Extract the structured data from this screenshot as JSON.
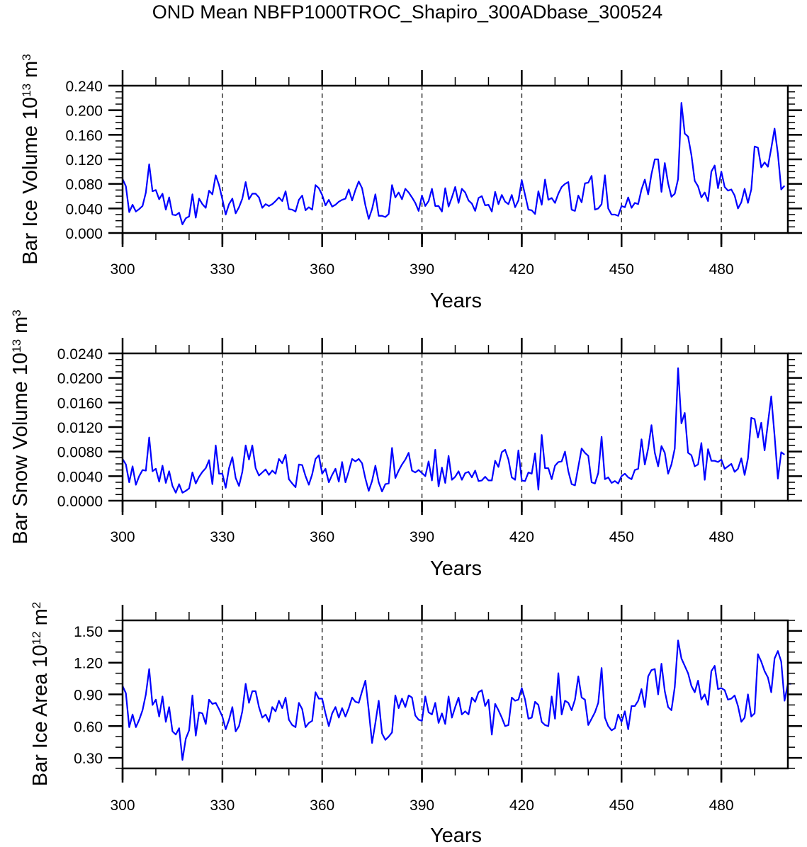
{
  "title": "OND Mean NBFP1000TROC_Shapiro_300ADbase_300524",
  "line_color": "#0000ff",
  "chart_data": [
    {
      "type": "line",
      "title": "OND Mean NBFP1000TROC_Shapiro_300ADbase_300524",
      "xlabel": "Years",
      "ylabel": "Bar Ice Volume 10^13 m^3",
      "ylabel_parts": {
        "main": "Bar Ice Volume 10",
        "exp": "13",
        "unit": " m",
        "unit_exp": "3"
      },
      "xlim": [
        300,
        499
      ],
      "ylim": [
        0.0,
        0.24
      ],
      "x_ticks": [
        300,
        330,
        360,
        390,
        420,
        450,
        480
      ],
      "x_tick_labels": [
        "300",
        "330",
        "360",
        "390",
        "420",
        "450",
        "480"
      ],
      "y_ticks": [
        0.0,
        0.04,
        0.08,
        0.12,
        0.16,
        0.2,
        0.24
      ],
      "y_tick_labels": [
        "0.000",
        "0.040",
        "0.080",
        "0.120",
        "0.160",
        "0.200",
        "0.240"
      ],
      "grid": "dashed vertical lines at 330, 360, 390, 420, 450, 480",
      "x_start": 300,
      "values": [
        0.088,
        0.076,
        0.034,
        0.046,
        0.035,
        0.039,
        0.044,
        0.066,
        0.112,
        0.068,
        0.07,
        0.055,
        0.064,
        0.038,
        0.058,
        0.03,
        0.029,
        0.033,
        0.014,
        0.024,
        0.027,
        0.063,
        0.025,
        0.056,
        0.047,
        0.041,
        0.069,
        0.063,
        0.094,
        0.078,
        0.055,
        0.03,
        0.047,
        0.056,
        0.032,
        0.042,
        0.056,
        0.083,
        0.055,
        0.064,
        0.064,
        0.058,
        0.041,
        0.047,
        0.044,
        0.047,
        0.052,
        0.058,
        0.052,
        0.068,
        0.039,
        0.038,
        0.035,
        0.054,
        0.061,
        0.037,
        0.042,
        0.038,
        0.078,
        0.073,
        0.062,
        0.045,
        0.054,
        0.043,
        0.046,
        0.051,
        0.054,
        0.056,
        0.071,
        0.053,
        0.07,
        0.084,
        0.073,
        0.045,
        0.023,
        0.039,
        0.063,
        0.028,
        0.028,
        0.026,
        0.031,
        0.078,
        0.058,
        0.066,
        0.055,
        0.072,
        0.066,
        0.058,
        0.049,
        0.036,
        0.061,
        0.044,
        0.052,
        0.072,
        0.044,
        0.044,
        0.035,
        0.073,
        0.043,
        0.058,
        0.075,
        0.049,
        0.072,
        0.066,
        0.053,
        0.048,
        0.036,
        0.057,
        0.06,
        0.045,
        0.046,
        0.035,
        0.067,
        0.047,
        0.062,
        0.051,
        0.047,
        0.062,
        0.042,
        0.053,
        0.086,
        0.062,
        0.038,
        0.037,
        0.031,
        0.068,
        0.046,
        0.087,
        0.054,
        0.057,
        0.049,
        0.064,
        0.075,
        0.08,
        0.083,
        0.038,
        0.036,
        0.061,
        0.05,
        0.081,
        0.082,
        0.093,
        0.038,
        0.04,
        0.047,
        0.094,
        0.04,
        0.03,
        0.03,
        0.028,
        0.044,
        0.042,
        0.058,
        0.041,
        0.049,
        0.047,
        0.071,
        0.087,
        0.063,
        0.096,
        0.12,
        0.12,
        0.067,
        0.114,
        0.081,
        0.059,
        0.064,
        0.088,
        0.212,
        0.162,
        0.157,
        0.127,
        0.085,
        0.076,
        0.058,
        0.066,
        0.052,
        0.1,
        0.11,
        0.073,
        0.1,
        0.075,
        0.069,
        0.071,
        0.061,
        0.04,
        0.05,
        0.072,
        0.049,
        0.071,
        0.141,
        0.139,
        0.107,
        0.115,
        0.108,
        0.138,
        0.17,
        0.129,
        0.071,
        0.077
      ]
    },
    {
      "type": "line",
      "xlabel": "Years",
      "ylabel": "Bar Snow Volume 10^13 m^3",
      "ylabel_parts": {
        "main": "Bar Snow Volume 10",
        "exp": "13",
        "unit": " m",
        "unit_exp": "3"
      },
      "xlim": [
        300,
        499
      ],
      "ylim": [
        0.0,
        0.024
      ],
      "x_ticks": [
        300,
        330,
        360,
        390,
        420,
        450,
        480
      ],
      "x_tick_labels": [
        "300",
        "330",
        "360",
        "390",
        "420",
        "450",
        "480"
      ],
      "y_ticks": [
        0.0,
        0.004,
        0.008,
        0.012,
        0.016,
        0.02,
        0.024
      ],
      "y_tick_labels": [
        "0.0000",
        "0.0040",
        "0.0080",
        "0.0120",
        "0.0160",
        "0.0200",
        "0.0240"
      ],
      "grid": "dashed vertical lines at 330, 360, 390, 420, 450, 480",
      "x_start": 300,
      "values": [
        0.0068,
        0.0059,
        0.003,
        0.0056,
        0.0026,
        0.004,
        0.005,
        0.0049,
        0.0103,
        0.0048,
        0.0052,
        0.0031,
        0.0057,
        0.0029,
        0.0048,
        0.0024,
        0.0013,
        0.0027,
        0.0013,
        0.0016,
        0.002,
        0.0046,
        0.0028,
        0.0039,
        0.0047,
        0.0053,
        0.0066,
        0.0027,
        0.009,
        0.0044,
        0.0044,
        0.0021,
        0.0053,
        0.0071,
        0.0037,
        0.0024,
        0.0047,
        0.009,
        0.0067,
        0.009,
        0.0053,
        0.0041,
        0.0046,
        0.0051,
        0.0042,
        0.0049,
        0.0044,
        0.0068,
        0.0061,
        0.0075,
        0.0035,
        0.0028,
        0.0022,
        0.0059,
        0.0058,
        0.004,
        0.0026,
        0.0043,
        0.0068,
        0.0074,
        0.0044,
        0.0052,
        0.003,
        0.0042,
        0.0052,
        0.0031,
        0.0063,
        0.003,
        0.0048,
        0.0068,
        0.0064,
        0.0068,
        0.0061,
        0.0036,
        0.0016,
        0.0032,
        0.0057,
        0.003,
        0.0015,
        0.0027,
        0.0028,
        0.0086,
        0.0037,
        0.0049,
        0.0059,
        0.0067,
        0.0078,
        0.0049,
        0.0046,
        0.005,
        0.0045,
        0.004,
        0.0064,
        0.0033,
        0.0083,
        0.0023,
        0.0054,
        0.0029,
        0.0073,
        0.0034,
        0.0039,
        0.0048,
        0.0034,
        0.0045,
        0.0047,
        0.0038,
        0.0049,
        0.0032,
        0.0033,
        0.0039,
        0.0033,
        0.0033,
        0.0065,
        0.0055,
        0.0079,
        0.0083,
        0.0067,
        0.0038,
        0.0034,
        0.0082,
        0.0033,
        0.0032,
        0.0046,
        0.0044,
        0.0077,
        0.0018,
        0.0107,
        0.0053,
        0.0053,
        0.0035,
        0.0057,
        0.0063,
        0.0064,
        0.008,
        0.0048,
        0.0027,
        0.0025,
        0.0055,
        0.0085,
        0.0078,
        0.0073,
        0.003,
        0.0028,
        0.0045,
        0.0104,
        0.0035,
        0.0038,
        0.0029,
        0.0032,
        0.0028,
        0.004,
        0.0044,
        0.0038,
        0.0035,
        0.005,
        0.0052,
        0.01,
        0.0059,
        0.0085,
        0.0123,
        0.0078,
        0.0056,
        0.0089,
        0.0078,
        0.0044,
        0.0059,
        0.0085,
        0.0216,
        0.0126,
        0.0143,
        0.0078,
        0.0074,
        0.0056,
        0.0059,
        0.0094,
        0.0034,
        0.0084,
        0.0065,
        0.0065,
        0.0063,
        0.0067,
        0.0052,
        0.0056,
        0.006,
        0.0047,
        0.0052,
        0.0069,
        0.0042,
        0.0069,
        0.0135,
        0.0133,
        0.0103,
        0.0127,
        0.0082,
        0.0126,
        0.017,
        0.0106,
        0.0036,
        0.0079,
        0.0075
      ]
    },
    {
      "type": "line",
      "xlabel": "Years",
      "ylabel": "Bar Ice Area 10^12 m^2",
      "ylabel_parts": {
        "main": "Bar Ice Area 10",
        "exp": "12",
        "unit": " m",
        "unit_exp": "2"
      },
      "xlim": [
        300,
        499
      ],
      "ylim": [
        0.2,
        1.6
      ],
      "x_ticks": [
        300,
        330,
        360,
        390,
        420,
        450,
        480
      ],
      "x_tick_labels": [
        "300",
        "330",
        "360",
        "390",
        "420",
        "450",
        "480"
      ],
      "y_ticks": [
        0.3,
        0.6,
        0.9,
        1.2,
        1.5
      ],
      "y_tick_labels": [
        "0.30",
        "0.60",
        "0.90",
        "1.20",
        "1.50"
      ],
      "grid": "dashed vertical lines at 330, 360, 390, 420, 450, 480",
      "x_start": 300,
      "values": [
        0.98,
        0.91,
        0.59,
        0.71,
        0.59,
        0.66,
        0.75,
        0.9,
        1.14,
        0.8,
        0.85,
        0.69,
        0.88,
        0.64,
        0.78,
        0.55,
        0.52,
        0.58,
        0.28,
        0.48,
        0.56,
        0.89,
        0.51,
        0.73,
        0.72,
        0.62,
        0.85,
        0.81,
        0.82,
        0.76,
        0.69,
        0.57,
        0.66,
        0.78,
        0.55,
        0.6,
        0.74,
        1.0,
        0.82,
        0.93,
        0.93,
        0.78,
        0.68,
        0.71,
        0.64,
        0.78,
        0.74,
        0.84,
        0.77,
        0.87,
        0.66,
        0.61,
        0.59,
        0.82,
        0.76,
        0.59,
        0.63,
        0.65,
        0.92,
        0.86,
        0.86,
        0.72,
        0.6,
        0.72,
        0.78,
        0.68,
        0.77,
        0.69,
        0.77,
        0.87,
        0.83,
        0.82,
        0.93,
        1.03,
        0.75,
        0.44,
        0.63,
        0.84,
        0.53,
        0.47,
        0.5,
        0.54,
        0.89,
        0.77,
        0.86,
        0.78,
        0.89,
        0.87,
        0.7,
        0.66,
        0.65,
        0.88,
        0.73,
        0.71,
        0.82,
        0.63,
        0.72,
        0.62,
        0.88,
        0.68,
        0.78,
        0.87,
        0.71,
        0.74,
        0.71,
        0.87,
        0.83,
        0.92,
        0.94,
        0.79,
        0.85,
        0.52,
        0.81,
        0.75,
        0.68,
        0.6,
        0.61,
        0.87,
        0.84,
        0.85,
        0.96,
        0.85,
        0.67,
        0.68,
        0.83,
        0.8,
        0.64,
        0.61,
        0.6,
        0.88,
        0.67,
        1.1,
        0.71,
        0.84,
        0.82,
        0.75,
        0.85,
        1.07,
        0.87,
        0.85,
        0.61,
        0.67,
        0.73,
        0.82,
        1.15,
        0.68,
        0.6,
        0.56,
        0.58,
        0.71,
        0.64,
        0.74,
        0.57,
        0.79,
        0.79,
        0.84,
        0.95,
        0.78,
        1.07,
        1.13,
        1.14,
        0.9,
        1.19,
        0.93,
        0.78,
        0.75,
        0.97,
        1.41,
        1.24,
        1.17,
        1.1,
        0.98,
        0.92,
        1.03,
        0.85,
        0.9,
        0.8,
        1.12,
        1.17,
        0.95,
        0.96,
        0.94,
        0.85,
        0.86,
        0.89,
        0.79,
        0.64,
        0.68,
        0.9,
        0.69,
        0.72,
        1.28,
        1.21,
        1.12,
        1.06,
        0.92,
        1.24,
        1.31,
        1.21,
        0.84,
        1.0,
        1.0
      ]
    }
  ]
}
